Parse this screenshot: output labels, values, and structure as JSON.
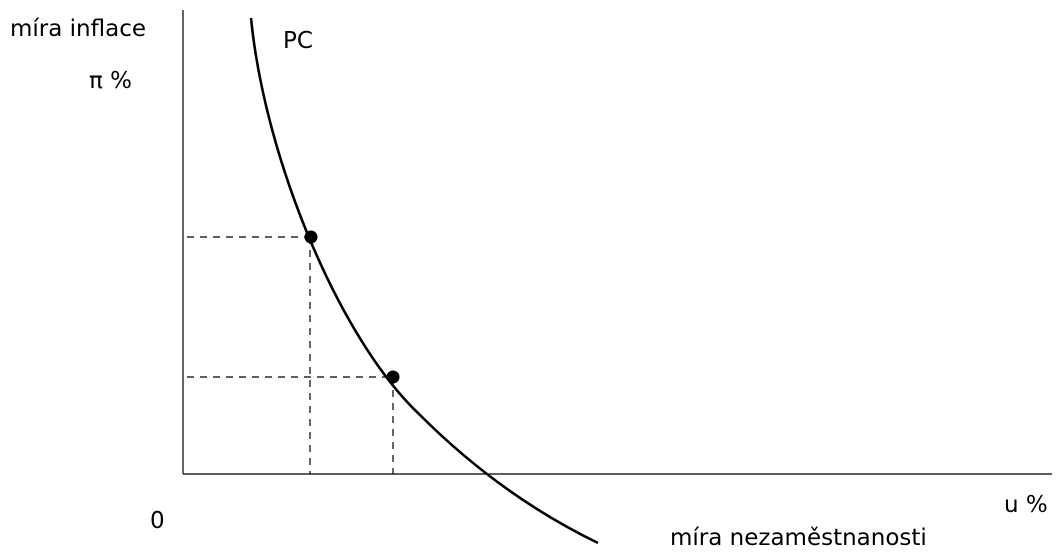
{
  "labels": {
    "y_axis_title": "míra inflace",
    "y_axis_unit": "π %",
    "origin": "0",
    "x_axis_unit": "u %",
    "x_axis_title": "míra nezaměstnanosti",
    "curve": "PC"
  },
  "colors": {
    "line": "#000000",
    "dashed_guides": "#000000",
    "background": "#ffffff"
  }
}
